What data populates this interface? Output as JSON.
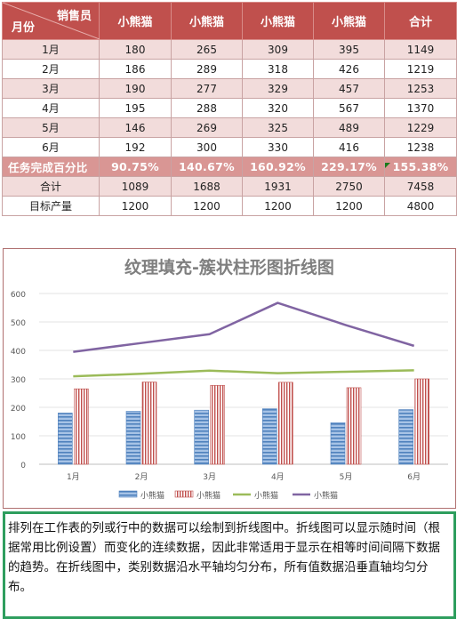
{
  "table": {
    "header": {
      "corner_top": "销售员",
      "corner_bottom": "月份",
      "columns": [
        "小熊猫",
        "小熊猫",
        "小熊猫",
        "小熊猫",
        "合计"
      ]
    },
    "rows": [
      {
        "label": "1月",
        "values": [
          "180",
          "265",
          "309",
          "395",
          "1149"
        ]
      },
      {
        "label": "2月",
        "values": [
          "186",
          "289",
          "318",
          "426",
          "1219"
        ]
      },
      {
        "label": "3月",
        "values": [
          "190",
          "277",
          "329",
          "457",
          "1253"
        ]
      },
      {
        "label": "4月",
        "values": [
          "195",
          "288",
          "320",
          "567",
          "1370"
        ]
      },
      {
        "label": "5月",
        "values": [
          "146",
          "269",
          "325",
          "489",
          "1229"
        ]
      },
      {
        "label": "6月",
        "values": [
          "192",
          "300",
          "330",
          "416",
          "1238"
        ]
      }
    ],
    "percent_row": {
      "label": "任务完成百分比",
      "values": [
        "90.75%",
        "140.67%",
        "160.92%",
        "229.17%",
        "155.38%"
      ]
    },
    "total_row": {
      "label": "合计",
      "values": [
        "1089",
        "1688",
        "1931",
        "2750",
        "7458"
      ]
    },
    "target_row": {
      "label": "目标产量",
      "values": [
        "1200",
        "1200",
        "1200",
        "1200",
        "4800"
      ]
    }
  },
  "chart_data": {
    "type": "bar",
    "title": "纹理填充-簇状柱形图折线图",
    "categories": [
      "1月",
      "2月",
      "3月",
      "4月",
      "5月",
      "6月"
    ],
    "series": [
      {
        "name": "小熊猫",
        "kind": "bar",
        "color": "#4f81bd",
        "values": [
          180,
          186,
          190,
          195,
          146,
          192
        ]
      },
      {
        "name": "小熊猫",
        "kind": "bar",
        "color": "#c0504d",
        "values": [
          265,
          289,
          277,
          288,
          269,
          300
        ]
      },
      {
        "name": "小熊猫",
        "kind": "line",
        "color": "#9bbb59",
        "values": [
          309,
          318,
          329,
          320,
          325,
          330
        ]
      },
      {
        "name": "小熊猫",
        "kind": "line",
        "color": "#8064a2",
        "values": [
          395,
          426,
          457,
          567,
          489,
          416
        ]
      }
    ],
    "ylim": [
      0,
      600
    ],
    "yticks": [
      "0",
      "100",
      "200",
      "300",
      "400",
      "500",
      "600"
    ],
    "grid": true,
    "legend": "bottom"
  },
  "note": {
    "text": "排列在工作表的列或行中的数据可以绘制到折线图中。折线图可以显示随时间（根据常用比例设置）而变化的连续数据，因此非常适用于显示在相等时间间隔下数据的趋势。在折线图中，类别数据沿水平轴均匀分布，所有值数据沿垂直轴均匀分布。"
  }
}
